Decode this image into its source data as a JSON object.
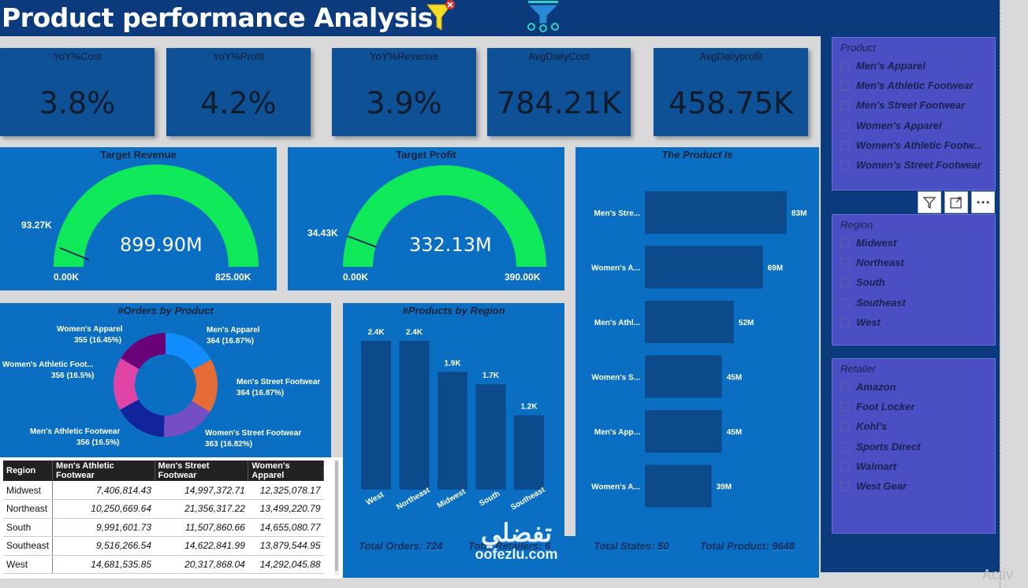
{
  "header": {
    "title": "Product performance Analysis"
  },
  "kpis": [
    {
      "label": "YoY%Cost",
      "value": "3.8%"
    },
    {
      "label": "YoY%Profit",
      "value": "4.2%"
    },
    {
      "label": "YoY%Revenue",
      "value": "3.9%"
    },
    {
      "label": "AvgDailyCost",
      "value": "784.21K"
    },
    {
      "label": "AvgDailyprofit",
      "value": "458.75K"
    }
  ],
  "gauges": [
    {
      "title": "Target Revenue",
      "value": "899.90M",
      "target": "93.27K",
      "min": "0.00K",
      "max": "825.00K",
      "fill_fraction": 1.0
    },
    {
      "title": "Target Profit",
      "value": "332.13M",
      "target": "34.43K",
      "min": "0.00K",
      "max": "390.00K",
      "fill_fraction": 1.0
    }
  ],
  "product_bars": {
    "title": "The Product Is",
    "categories": [
      "Men's Stre...",
      "Women's A...",
      "Men's Athl...",
      "Women's S...",
      "Men's App...",
      "Women's A..."
    ],
    "labels": [
      "83M",
      "69M",
      "52M",
      "45M",
      "45M",
      "39M"
    ],
    "values": [
      83,
      69,
      52,
      45,
      45,
      39
    ]
  },
  "donut": {
    "title": "#Orders by Product",
    "slices": [
      {
        "name": "Men's Apparel",
        "label": "364 (16.87%)",
        "value": 364,
        "color": "#118dff"
      },
      {
        "name": "Men's Street Footwear",
        "label": "364 (16.87%)",
        "value": 364,
        "color": "#e66c37"
      },
      {
        "name": "Women's Street Footwear",
        "label": "363 (16.82%)",
        "value": 363,
        "color": "#744ec2"
      },
      {
        "name": "Men's Athletic Footwear",
        "label": "356 (16.5%)",
        "value": 356,
        "color": "#12239e"
      },
      {
        "name": "Women's Athletic Foot...",
        "label": "356 (16.5%)",
        "value": 356,
        "color": "#e044a7"
      },
      {
        "name": "Women's Apparel",
        "label": "355 (16.45%)",
        "value": 355,
        "color": "#6b007b"
      }
    ]
  },
  "region_bars": {
    "title": "#Products by Region",
    "categories": [
      "West",
      "Northeast",
      "Midwest",
      "South",
      "Southeast"
    ],
    "labels": [
      "2.4K",
      "2.4K",
      "1.9K",
      "1.7K",
      "1.2K"
    ],
    "values": [
      2.4,
      2.4,
      1.9,
      1.7,
      1.2
    ]
  },
  "chart_data": [
    {
      "type": "bar",
      "title": "The Product Is",
      "categories": [
        "Men's Stre...",
        "Women's A...",
        "Men's Athl...",
        "Women's S...",
        "Men's App...",
        "Women's A..."
      ],
      "values": [
        83,
        69,
        52,
        45,
        45,
        39
      ]
    },
    {
      "type": "bar",
      "title": "#Products by Region",
      "categories": [
        "West",
        "Northeast",
        "Midwest",
        "South",
        "Southeast"
      ],
      "values": [
        2.4,
        2.4,
        1.9,
        1.7,
        1.2
      ]
    },
    {
      "type": "pie",
      "title": "#Orders by Product",
      "categories": [
        "Men's Apparel",
        "Men's Street Footwear",
        "Women's Street Footwear",
        "Men's Athletic Footwear",
        "Women's Athletic Foot...",
        "Women's Apparel"
      ],
      "values": [
        364,
        364,
        363,
        356,
        356,
        355
      ]
    }
  ],
  "matrix": {
    "headers": [
      "Region",
      "Men's Athletic Footwear",
      "Men's Street Footwear",
      "Women's Apparel"
    ],
    "rows": [
      [
        "Midwest",
        "7,406,814.43",
        "14,997,372.71",
        "12,325,078.17"
      ],
      [
        "Northeast",
        "10,250,669.64",
        "21,356,317.22",
        "13,499,220.79"
      ],
      [
        "South",
        "9,991,601.73",
        "11,507,860.66",
        "14,655,080.77"
      ],
      [
        "Southeast",
        "9,516,266.54",
        "14,622,841.99",
        "13,879,544.95"
      ],
      [
        "West",
        "14,681,535.85",
        "20,317,868.04",
        "14,292,045.88"
      ]
    ]
  },
  "footer": {
    "orders_label": "Total Orders:",
    "orders": "724",
    "retailers_label": "Total Retailers:",
    "retailers": "6",
    "states_label": "Total States:",
    "states": "50",
    "product_label": "Total Product:",
    "product": "9648"
  },
  "slicers": {
    "product": {
      "title": "Product",
      "items": [
        "Men's Apparel",
        "Men's Athletic Footwear",
        "Men's Street Footwear",
        "Women's Apparel",
        "Women's Athletic Footw...",
        "Women's Street Footwear"
      ]
    },
    "region": {
      "title": "Region",
      "items": [
        "Midwest",
        "Northeast",
        "South",
        "Southeast",
        "West"
      ]
    },
    "retailer": {
      "title": "Retailer",
      "items": [
        "Amazon",
        "Foot Locker",
        "Kohl's",
        "Sports Direct",
        "Walmart",
        "West Gear"
      ]
    }
  },
  "watermark": {
    "text1": "تفضلي",
    "text2": "oofezlu.com",
    "activate": "Activ"
  }
}
